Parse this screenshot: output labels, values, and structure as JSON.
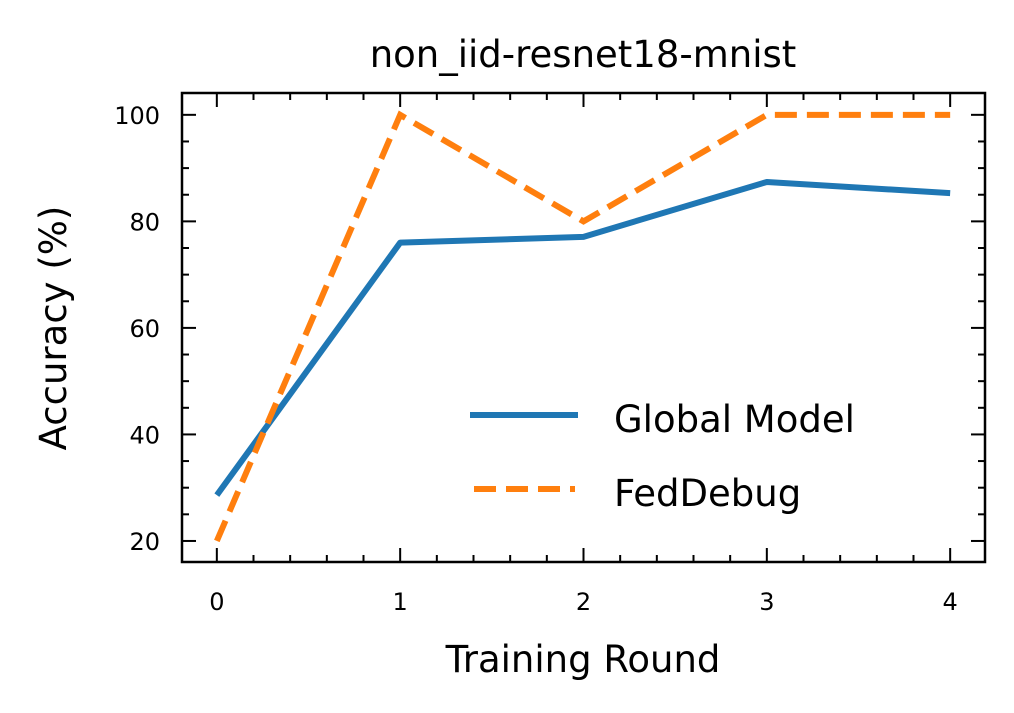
{
  "chart_data": {
    "type": "line",
    "title": "non_iid-resnet18-mnist",
    "xlabel": "Training Round",
    "ylabel": "Accuracy (%)",
    "x": [
      0,
      1,
      2,
      3,
      4
    ],
    "xticks": [
      "0",
      "1",
      "2",
      "3",
      "4"
    ],
    "yticks": [
      "20",
      "40",
      "60",
      "80",
      "100"
    ],
    "xlim": [
      -0.19,
      4.19
    ],
    "ylim": [
      16.05,
      104.1
    ],
    "grid": false,
    "legend_position": "lower-right",
    "series": [
      {
        "name": "Global Model",
        "values": [
          28.6,
          76.0,
          77.1,
          87.4,
          85.3
        ],
        "color": "#1f77b4",
        "style": "solid"
      },
      {
        "name": "FedDebug",
        "values": [
          20,
          100,
          80,
          100,
          100
        ],
        "color": "#ff7f0e",
        "style": "dashed"
      }
    ]
  }
}
